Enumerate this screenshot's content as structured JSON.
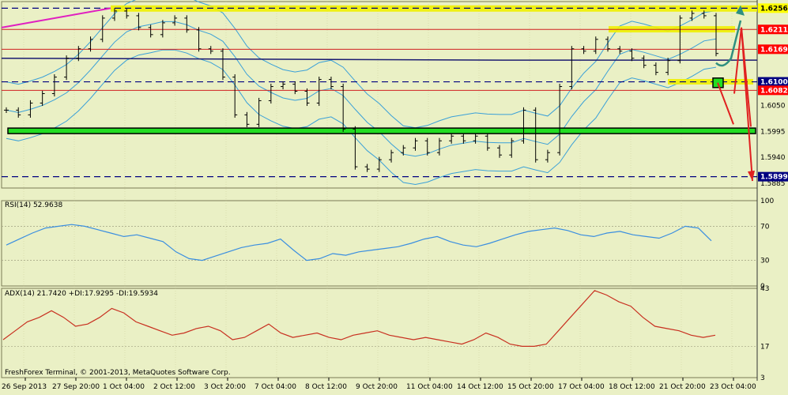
{
  "chart_data": [
    {
      "type": "candlestick",
      "panel": "price",
      "y_ticks": [
        1.6256,
        1.6211,
        1.6169,
        1.61,
        1.6082,
        1.605,
        1.5995,
        1.594,
        1.5899,
        1.5885
      ],
      "ylim": [
        1.5875,
        1.627
      ],
      "highlighted_levels": [
        {
          "value": 1.6256,
          "label": "1.6256",
          "box_color": "#ffff00"
        },
        {
          "value": 1.6211,
          "label": "1.6211",
          "box_color": "#ff0000"
        },
        {
          "value": 1.6169,
          "label": "1.6169",
          "box_color": "#ff0000"
        },
        {
          "value": 1.61,
          "label": "1.6100",
          "box_color": "#000080"
        },
        {
          "value": 1.6082,
          "label": "1.6082",
          "box_color": "#ff0000"
        },
        {
          "value": 1.5899,
          "label": "1.5899",
          "box_color": "#000080"
        }
      ],
      "x_labels": [
        "26 Sep 2013",
        "27 Sep 20:00",
        "1 Oct 04:00",
        "2 Oct 12:00",
        "3 Oct 20:00",
        "7 Oct 04:00",
        "8 Oct 12:00",
        "9 Oct 20:00",
        "11 Oct 04:00",
        "14 Oct 12:00",
        "15 Oct 20:00",
        "17 Oct 04:00",
        "18 Oct 12:00",
        "21 Oct 20:00",
        "23 Oct 04:00"
      ],
      "close_path": [
        1.604,
        1.603,
        1.6055,
        1.6075,
        1.611,
        1.615,
        1.617,
        1.619,
        1.6235,
        1.625,
        1.624,
        1.6215,
        1.62,
        1.6225,
        1.6235,
        1.621,
        1.617,
        1.6165,
        1.611,
        1.603,
        1.601,
        1.606,
        1.609,
        1.6095,
        1.608,
        1.6055,
        1.6105,
        1.609,
        1.6,
        1.592,
        1.5915,
        1.5935,
        1.595,
        1.596,
        1.5975,
        1.595,
        1.5975,
        1.5985,
        1.5975,
        1.5985,
        1.596,
        1.5945,
        1.5975,
        1.604,
        1.5935,
        1.595,
        1.609,
        1.617,
        1.6165,
        1.619,
        1.617,
        1.6165,
        1.615,
        1.6135,
        1.612,
        1.6145,
        1.6235,
        1.6245,
        1.624,
        1.616
      ]
    },
    {
      "type": "line",
      "panel": "rsi",
      "title": "RSI(14) 52.9638",
      "y_ticks": [
        100,
        70,
        30,
        0
      ],
      "ylim": [
        0,
        100
      ],
      "levels": [
        70,
        30
      ],
      "values": [
        48,
        55,
        62,
        68,
        70,
        72,
        70,
        66,
        62,
        58,
        60,
        56,
        52,
        40,
        32,
        30,
        35,
        40,
        45,
        48,
        50,
        55,
        42,
        30,
        32,
        38,
        36,
        40,
        42,
        44,
        46,
        50,
        55,
        58,
        52,
        48,
        46,
        50,
        55,
        60,
        64,
        66,
        68,
        65,
        60,
        58,
        62,
        64,
        60,
        58,
        56,
        62,
        70,
        68,
        53
      ]
    },
    {
      "type": "line",
      "panel": "adx",
      "title": "ADX(14) 21.7420 +DI:17.9295 -DI:19.5934",
      "y_ticks": [
        43,
        17,
        3
      ],
      "ylim": [
        3,
        43
      ],
      "levels": [
        17
      ],
      "values": [
        20,
        24,
        28,
        30,
        33,
        30,
        26,
        27,
        30,
        34,
        32,
        28,
        26,
        24,
        22,
        23,
        25,
        26,
        24,
        20,
        21,
        24,
        27,
        23,
        21,
        22,
        23,
        21,
        20,
        22,
        23,
        24,
        22,
        21,
        20,
        21,
        20,
        19,
        18,
        20,
        23,
        21,
        18,
        17,
        17,
        18,
        24,
        30,
        36,
        42,
        40,
        37,
        35,
        30,
        26,
        25,
        24,
        22,
        21,
        22
      ]
    }
  ],
  "footer": {
    "copyright": "FreshForex Terminal, © 2001-2013, MetaQuotes Software Corp."
  }
}
